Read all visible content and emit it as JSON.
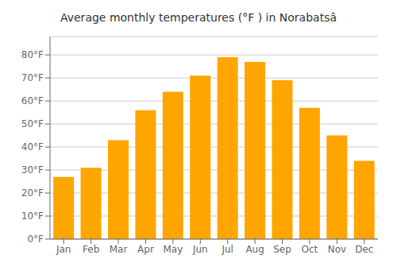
{
  "chart_data": {
    "type": "bar",
    "title": "Average monthly temperatures (°F ) in Norabatsâ",
    "categories": [
      "Jan",
      "Feb",
      "Mar",
      "Apr",
      "May",
      "Jun",
      "Jul",
      "Aug",
      "Sep",
      "Oct",
      "Nov",
      "Dec"
    ],
    "values": [
      27,
      31,
      43,
      56,
      64,
      71,
      79,
      77,
      69,
      57,
      45,
      34
    ],
    "color": "#FFA500",
    "ylim": [
      0,
      88
    ],
    "yticks": [
      {
        "value": 0,
        "label": "0°F"
      },
      {
        "value": 10,
        "label": "10°F"
      },
      {
        "value": 20,
        "label": "20°F"
      },
      {
        "value": 30,
        "label": "30°F"
      },
      {
        "value": 40,
        "label": "40°F"
      },
      {
        "value": 50,
        "label": "50°F"
      },
      {
        "value": 60,
        "label": "60°F"
      },
      {
        "value": 70,
        "label": "70°F"
      },
      {
        "value": 80,
        "label": "80°F"
      }
    ],
    "grid": true
  }
}
